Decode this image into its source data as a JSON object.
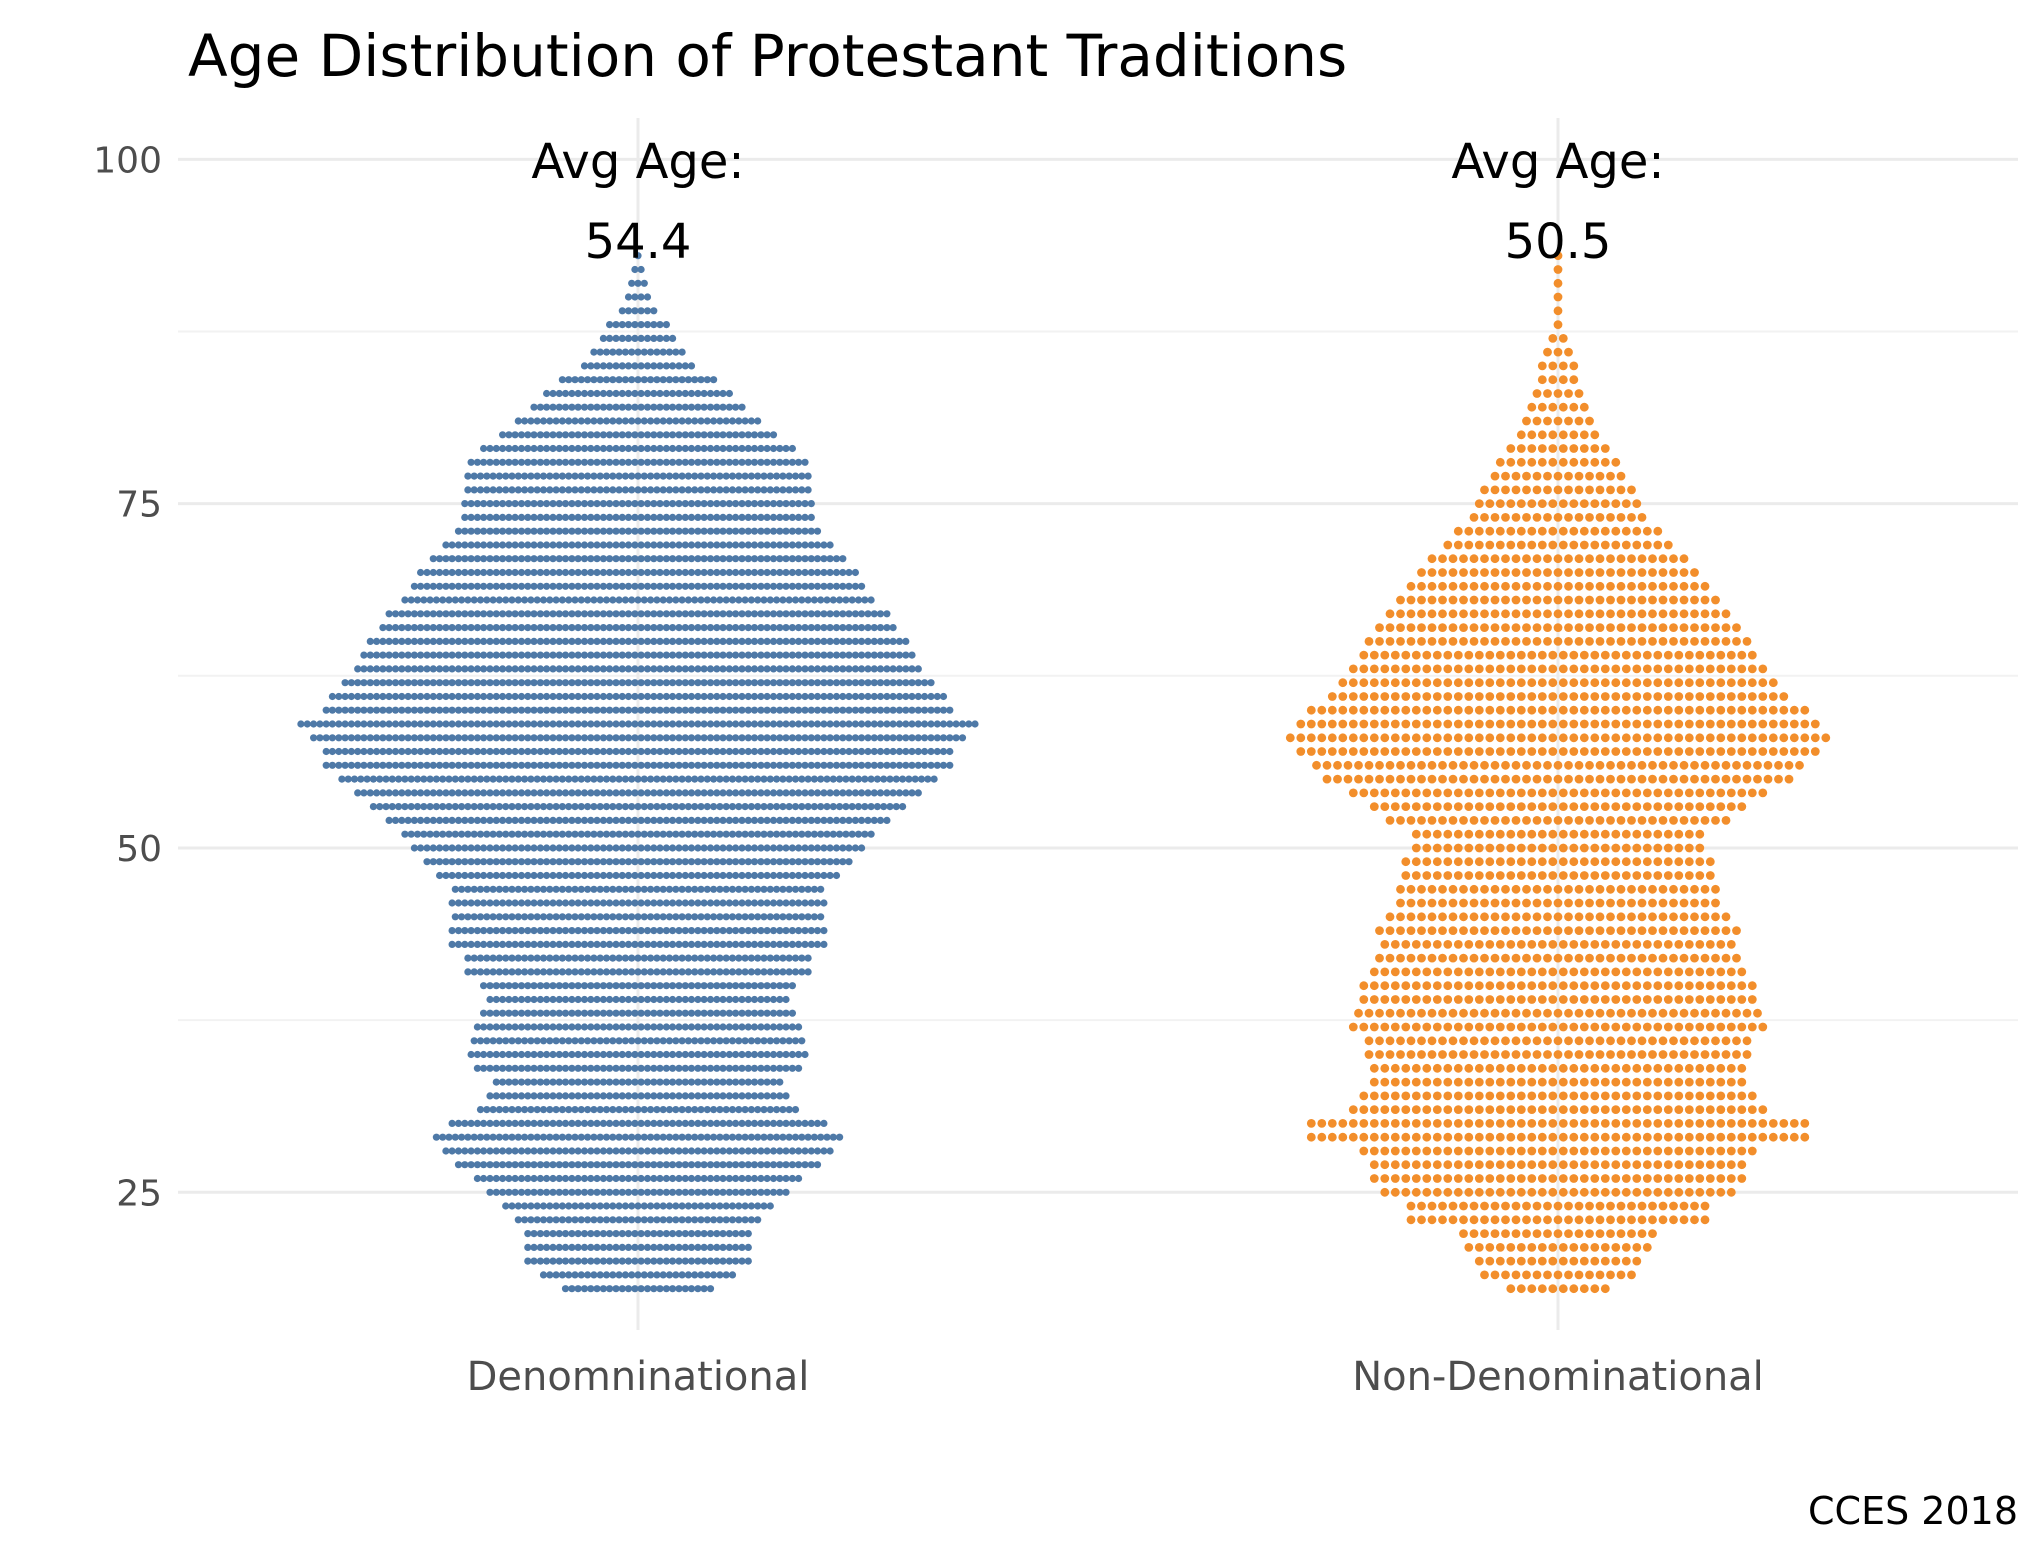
{
  "chart_data": {
    "type": "scatter",
    "subtype": "beeswarm",
    "title": "Age Distribution of Protestant Traditions",
    "xlabel": "",
    "ylabel": "",
    "ylim": [
      15,
      103
    ],
    "y_ticks": [
      25,
      50,
      75,
      100
    ],
    "grid": true,
    "legend": "none",
    "caption": "CCES 2018",
    "categories": [
      "Denomninational",
      "Non-Denominational"
    ],
    "series": [
      {
        "category": "Denomninational",
        "color": "#4e79a7",
        "avg_label": "Avg Age:",
        "avg_value": "54.4",
        "age_min": 18,
        "age_max": 93,
        "age_counts": {
          "18": 24,
          "19": 31,
          "20": 36,
          "21": 36,
          "22": 36,
          "23": 39,
          "24": 43,
          "25": 48,
          "26": 52,
          "27": 58,
          "28": 62,
          "29": 65,
          "30": 60,
          "31": 51,
          "32": 48,
          "33": 46,
          "34": 52,
          "35": 54,
          "36": 53,
          "37": 52,
          "38": 50,
          "39": 48,
          "40": 50,
          "41": 55,
          "42": 55,
          "43": 60,
          "44": 60,
          "45": 59,
          "46": 60,
          "47": 59,
          "48": 64,
          "49": 68,
          "50": 72,
          "51": 75,
          "52": 80,
          "53": 85,
          "54": 90,
          "55": 95,
          "56": 100,
          "57": 100,
          "58": 104,
          "59": 108,
          "60": 100,
          "61": 98,
          "62": 94,
          "63": 90,
          "64": 88,
          "65": 86,
          "66": 82,
          "67": 80,
          "68": 75,
          "69": 72,
          "70": 70,
          "71": 66,
          "72": 62,
          "73": 58,
          "74": 56,
          "75": 56,
          "76": 55,
          "77": 55,
          "78": 54,
          "79": 50,
          "80": 44,
          "81": 39,
          "82": 34,
          "83": 30,
          "84": 25,
          "85": 18,
          "86": 15,
          "87": 12,
          "88": 10,
          "89": 6,
          "90": 4,
          "91": 3,
          "92": 2,
          "93": 1
        }
      },
      {
        "category": "Non-Denominational",
        "color": "#f28e2b",
        "avg_label": "Avg Age:",
        "avg_value": "50.5",
        "age_min": 18,
        "age_max": 93,
        "age_counts": {
          "18": 10,
          "19": 15,
          "20": 16,
          "21": 18,
          "22": 19,
          "23": 29,
          "24": 29,
          "25": 34,
          "26": 36,
          "27": 36,
          "28": 38,
          "29": 48,
          "30": 48,
          "31": 40,
          "32": 38,
          "33": 36,
          "34": 36,
          "35": 37,
          "36": 37,
          "37": 40,
          "38": 39,
          "39": 38,
          "40": 38,
          "41": 36,
          "42": 35,
          "43": 34,
          "44": 35,
          "45": 33,
          "46": 31,
          "47": 31,
          "48": 30,
          "49": 30,
          "50": 28,
          "51": 28,
          "52": 33,
          "53": 36,
          "54": 40,
          "55": 45,
          "56": 47,
          "57": 50,
          "58": 52,
          "59": 50,
          "60": 48,
          "61": 44,
          "62": 42,
          "63": 40,
          "64": 38,
          "65": 37,
          "66": 35,
          "67": 33,
          "68": 31,
          "69": 29,
          "70": 27,
          "71": 25,
          "72": 22,
          "73": 20,
          "74": 17,
          "75": 16,
          "76": 15,
          "77": 13,
          "78": 12,
          "79": 10,
          "80": 8,
          "81": 7,
          "82": 6,
          "83": 5,
          "84": 4,
          "85": 4,
          "86": 3,
          "87": 2,
          "88": 1,
          "89": 1,
          "90": 1,
          "91": 1,
          "92": 1,
          "93": 1
        }
      }
    ]
  }
}
